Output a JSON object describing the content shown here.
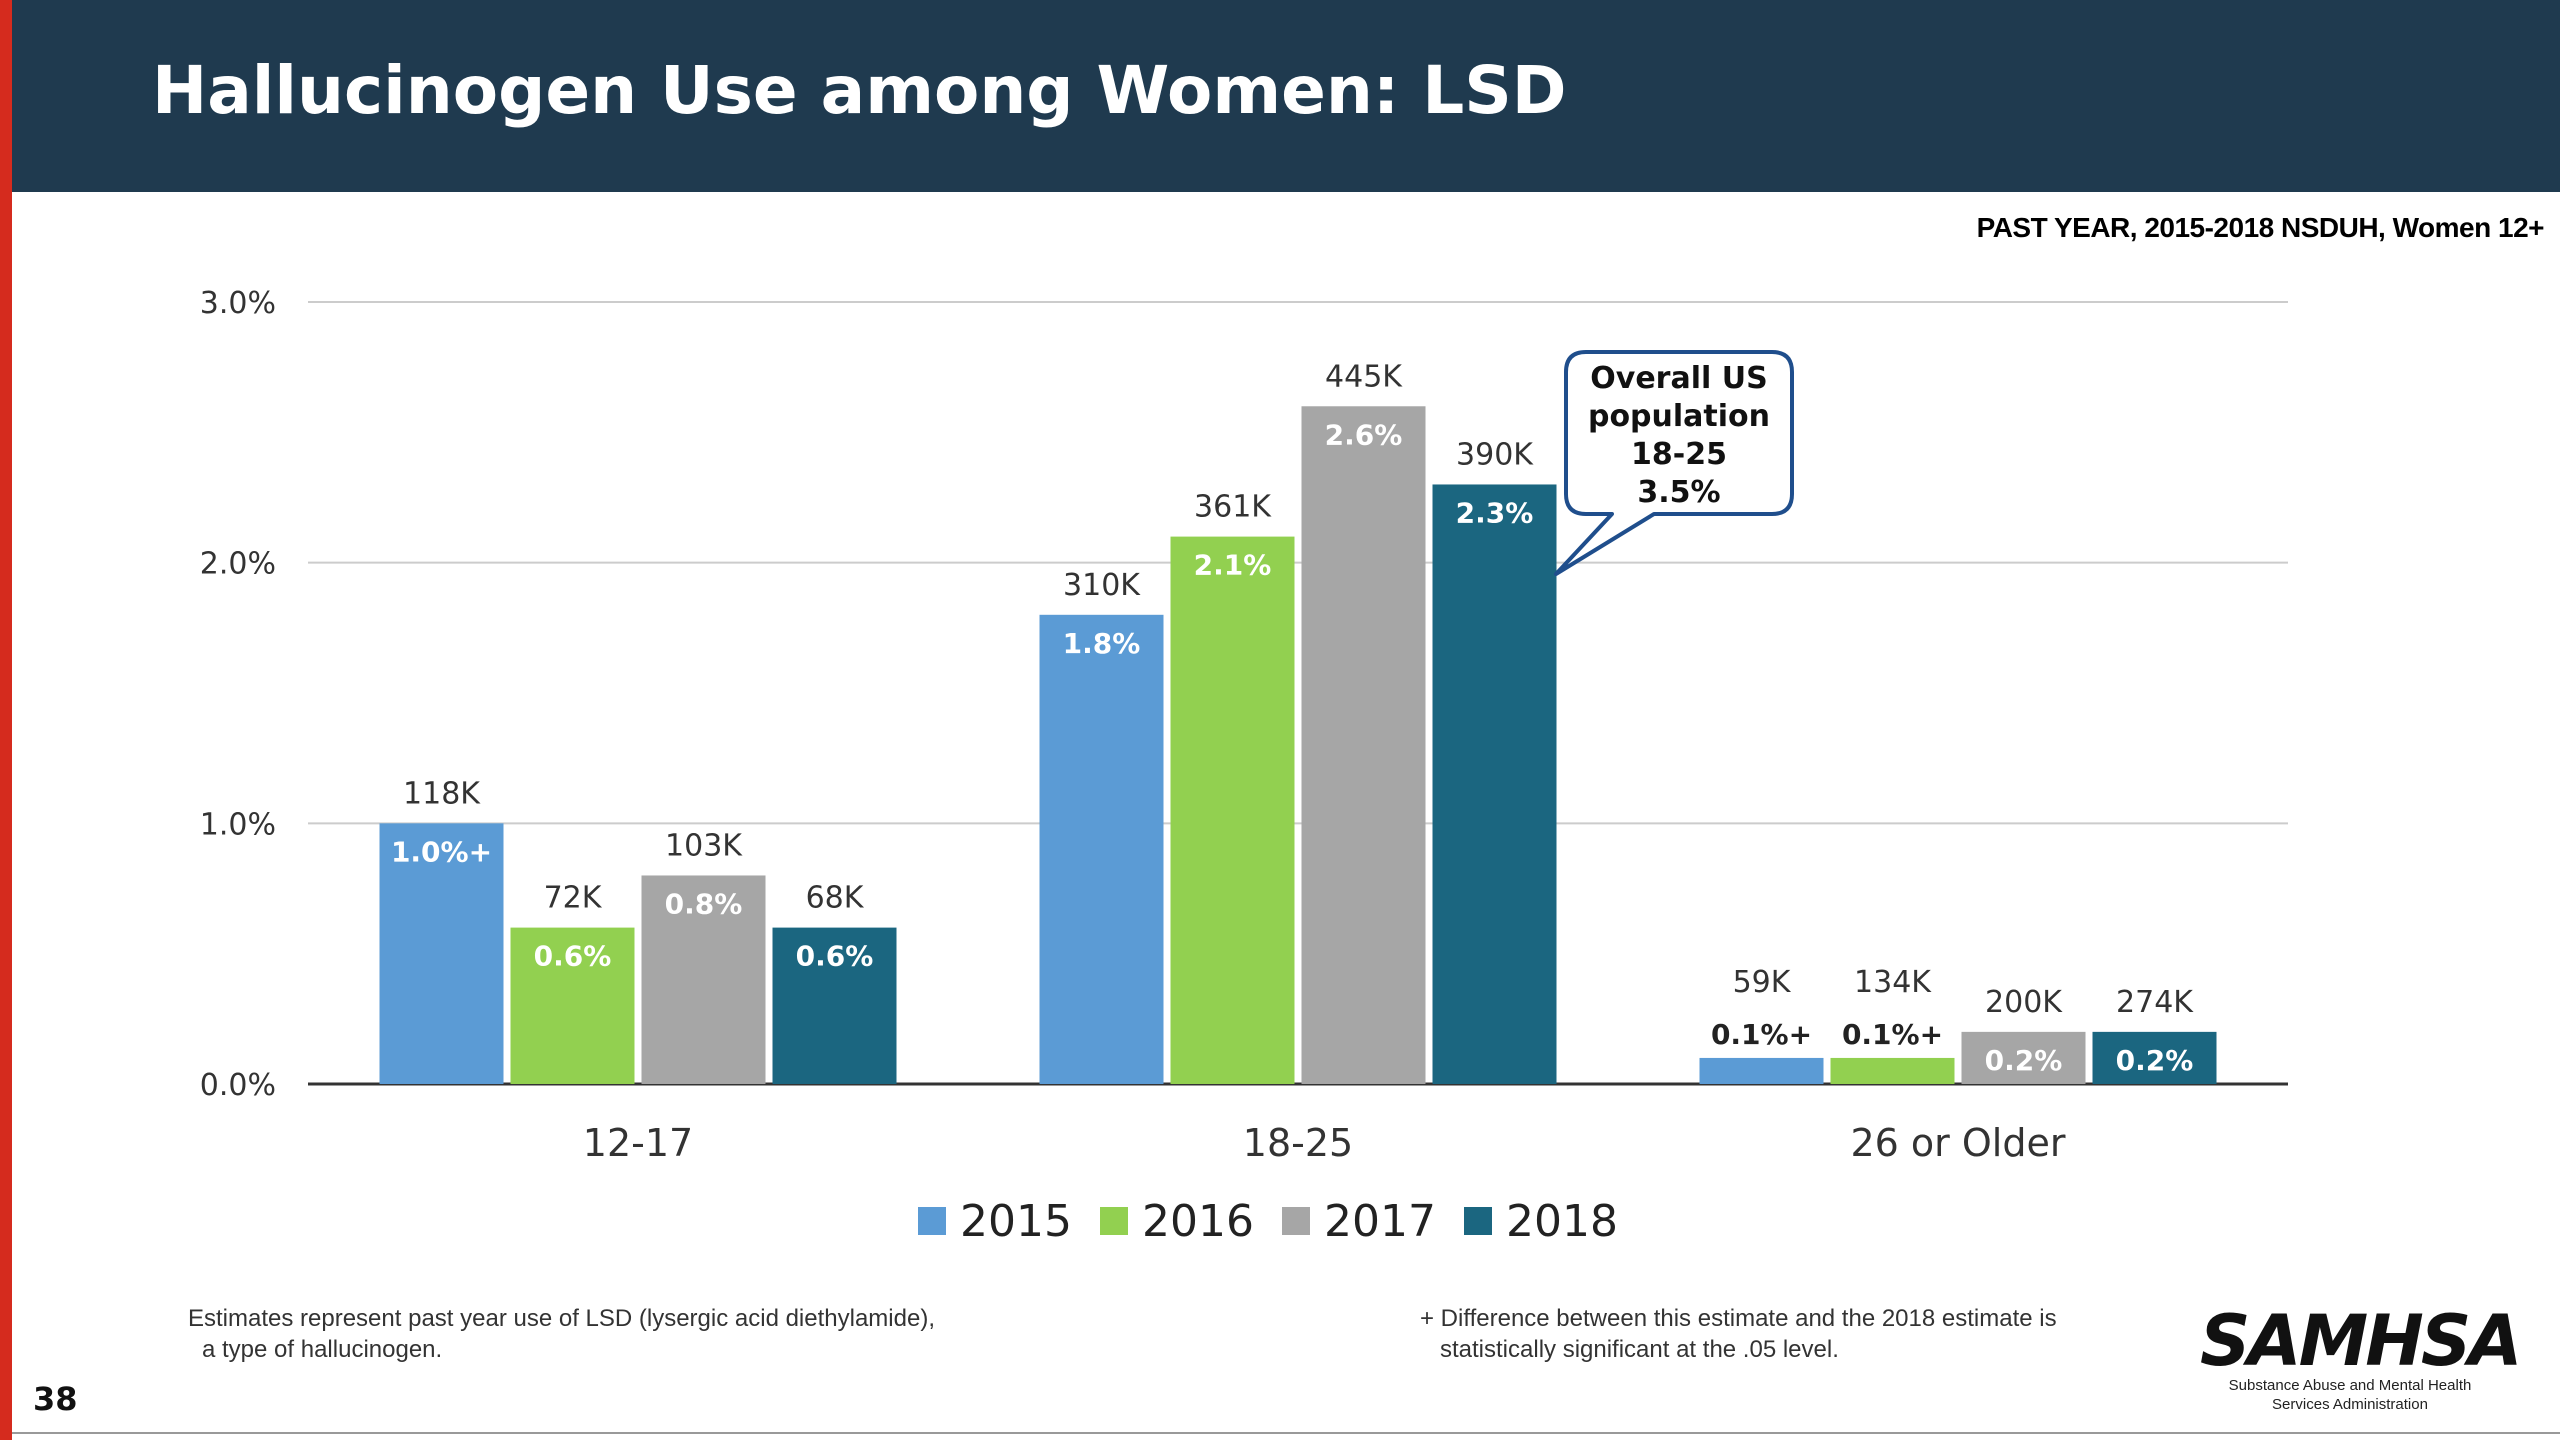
{
  "header": {
    "title": "Hallucinogen Use among Women: LSD",
    "subtitle": "PAST YEAR, 2015-2018 NSDUH, Women 12+"
  },
  "colors": {
    "header_bg": "#1f3a4f",
    "accent_red": "#d52b1e",
    "series_2015": "#5b9bd5",
    "series_2016": "#92d050",
    "series_2017": "#a6a6a6",
    "series_2018": "#1b6680"
  },
  "chart_data": {
    "type": "bar",
    "title": "",
    "xlabel": "",
    "ylabel": "",
    "ylim": [
      0,
      3.0
    ],
    "yticks": [
      {
        "value": 0,
        "label": "0.0%"
      },
      {
        "value": 1,
        "label": "1.0%"
      },
      {
        "value": 2,
        "label": "2.0%"
      },
      {
        "value": 3,
        "label": "3.0%"
      }
    ],
    "grid": true,
    "legend_position": "bottom-center",
    "categories": [
      "12-17",
      "18-25",
      "26 or Older"
    ],
    "series": [
      {
        "name": "2015",
        "color": "#5b9bd5",
        "values": [
          1.0,
          1.8,
          0.1
        ],
        "labels": [
          "1.0%+",
          "1.8%",
          "0.1%+"
        ],
        "counts": [
          "118K",
          "310K",
          "59K"
        ]
      },
      {
        "name": "2016",
        "color": "#92d050",
        "values": [
          0.6,
          2.1,
          0.1
        ],
        "labels": [
          "0.6%",
          "2.1%",
          "0.1%+"
        ],
        "counts": [
          "72K",
          "361K",
          "134K"
        ]
      },
      {
        "name": "2017",
        "color": "#a6a6a6",
        "values": [
          0.8,
          2.6,
          0.2
        ],
        "labels": [
          "0.8%",
          "2.6%",
          "0.2%"
        ],
        "counts": [
          "103K",
          "445K",
          "200K"
        ]
      },
      {
        "name": "2018",
        "color": "#1b6680",
        "values": [
          0.6,
          2.3,
          0.2
        ],
        "labels": [
          "0.6%",
          "2.3%",
          "0.2%"
        ],
        "counts": [
          "68K",
          "390K",
          "274K"
        ]
      }
    ],
    "callout": {
      "lines": [
        "Overall US",
        "population",
        "18-25",
        "3.5%"
      ]
    }
  },
  "footnotes": {
    "left": [
      "Estimates represent past year use of LSD (lysergic acid diethylamide),",
      "a type of hallucinogen."
    ],
    "right": [
      "+ Difference between this estimate and the 2018 estimate is",
      "statistically significant at the .05 level."
    ]
  },
  "page_number": "38",
  "logo": {
    "word": "SAMHSA",
    "subtitle_lines": [
      "Substance Abuse and Mental Health",
      "Services Administration"
    ]
  }
}
